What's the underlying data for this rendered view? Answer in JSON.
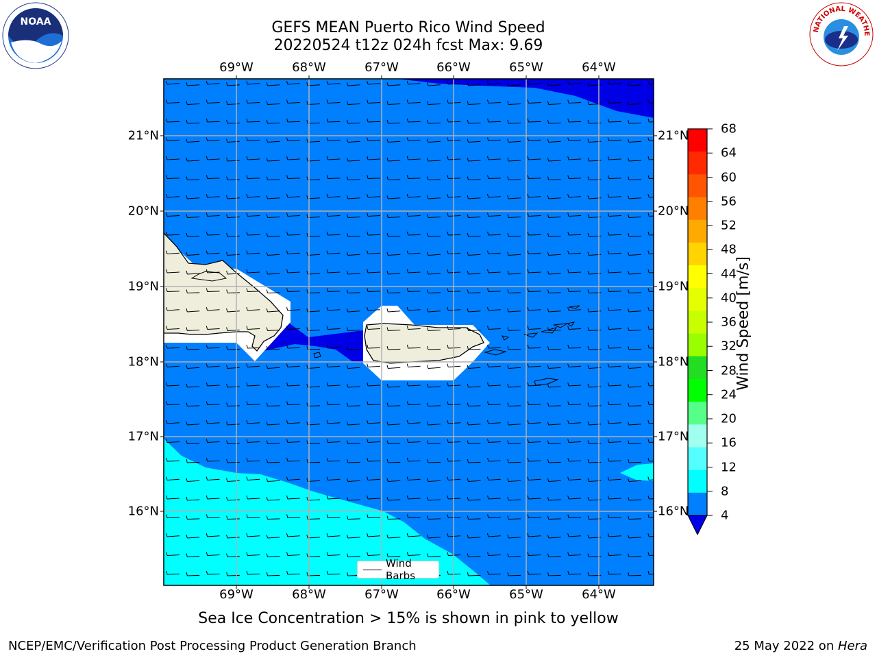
{
  "title_line1": "GEFS MEAN Puerto Rico Wind Speed",
  "title_line2": "20220524 t12z 024h fcst   Max: 9.69",
  "lon_labels": [
    "69°W",
    "68°W",
    "67°W",
    "66°W",
    "65°W",
    "64°W"
  ],
  "lat_labels": [
    "21°N",
    "20°N",
    "19°N",
    "18°N",
    "17°N",
    "16°N"
  ],
  "colorbar": {
    "label": "Wind Speed [m/s]",
    "ticks": [
      "68",
      "64",
      "60",
      "56",
      "52",
      "48",
      "44",
      "40",
      "36",
      "32",
      "28",
      "24",
      "20",
      "16",
      "12",
      "8",
      "4"
    ],
    "colors": [
      "#ff0000",
      "#ff2a00",
      "#ff5500",
      "#ff8000",
      "#ffaa00",
      "#ffd400",
      "#ffff00",
      "#e6ff00",
      "#c8ff00",
      "#99ff00",
      "#22dd22",
      "#00ff00",
      "#55ff88",
      "#a0ffee",
      "#55ffff",
      "#00ffff",
      "#0080ff"
    ],
    "under_color": "#0000e6"
  },
  "legend_label": "Wind Barbs",
  "caption": "Sea Ice Concentration > 15% is shown in pink to yellow",
  "footer_left": "NCEP/EMC/Verification Post Processing Product Generation Branch",
  "footer_right_prefix": "25 May 2022 on ",
  "footer_right_host": "Hera",
  "logo_left_text": "NOAA",
  "logo_right_text": "NATIONAL WEATHER SERVICE",
  "colors": {
    "ocean": "#0080ff",
    "low_wind": "#0000e6",
    "high_wind": "#00ffff",
    "land": "#efeedc",
    "mask": "#ffffff"
  }
}
